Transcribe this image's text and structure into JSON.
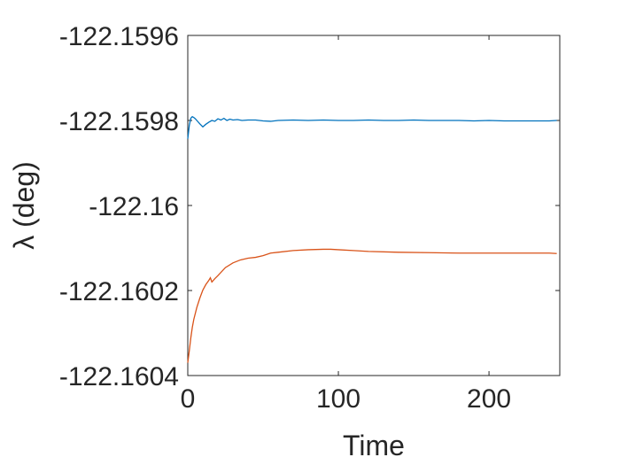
{
  "chart_data": {
    "type": "line",
    "title": "",
    "xlabel": "Time",
    "ylabel": "λ (deg)",
    "xlim": [
      0,
      247
    ],
    "ylim": [
      -122.1604,
      -122.1596
    ],
    "grid": false,
    "xticks": [
      0,
      100,
      200
    ],
    "xtick_labels": [
      "0",
      "100",
      "200"
    ],
    "yticks": [
      -122.1596,
      -122.1598,
      -122.16,
      -122.1602,
      -122.1604
    ],
    "ytick_labels": [
      "-122.1596",
      "-122.1598",
      "-122.16",
      "-122.1602",
      "-122.1604"
    ],
    "series": [
      {
        "color": "#0072BD",
        "x": [
          0,
          1,
          2,
          3,
          4,
          5,
          6,
          8,
          10,
          12,
          14,
          16,
          18,
          20,
          22,
          24,
          26,
          28,
          30,
          33,
          36,
          40,
          45,
          50,
          55,
          60,
          70,
          80,
          90,
          100,
          110,
          120,
          130,
          140,
          150,
          160,
          170,
          180,
          190,
          200,
          210,
          220,
          230,
          240,
          245
        ],
        "y": [
          -122.159843,
          -122.159812,
          -122.159795,
          -122.159791,
          -122.159793,
          -122.159796,
          -122.1598,
          -122.159808,
          -122.159815,
          -122.159809,
          -122.159804,
          -122.1598,
          -122.159802,
          -122.159796,
          -122.159799,
          -122.159795,
          -122.1598,
          -122.159797,
          -122.159799,
          -122.159798,
          -122.1598,
          -122.159799,
          -122.159799,
          -122.159801,
          -122.159802,
          -122.1598,
          -122.159799,
          -122.1598,
          -122.159799,
          -122.1598,
          -122.1598,
          -122.159799,
          -122.1598,
          -122.1598,
          -122.159799,
          -122.1598,
          -122.1598,
          -122.1598,
          -122.159801,
          -122.1598,
          -122.159801,
          -122.159801,
          -122.159801,
          -122.159801,
          -122.1598
        ]
      },
      {
        "color": "#D95319",
        "x": [
          0,
          1,
          2,
          3,
          4,
          6,
          8,
          10,
          12,
          14,
          15,
          16,
          18,
          20,
          25,
          30,
          35,
          40,
          45,
          50,
          55,
          60,
          70,
          80,
          90,
          95,
          100,
          110,
          120,
          140,
          160,
          180,
          200,
          220,
          240,
          245
        ],
        "y": [
          -122.16037,
          -122.160342,
          -122.160312,
          -122.160287,
          -122.160268,
          -122.16024,
          -122.160218,
          -122.160199,
          -122.160186,
          -122.160176,
          -122.16017,
          -122.16018,
          -122.160172,
          -122.160165,
          -122.160146,
          -122.160135,
          -122.160128,
          -122.160124,
          -122.160122,
          -122.160118,
          -122.160112,
          -122.16011,
          -122.160106,
          -122.160104,
          -122.160103,
          -122.160103,
          -122.160104,
          -122.160106,
          -122.160108,
          -122.16011,
          -122.160111,
          -122.160112,
          -122.160112,
          -122.160112,
          -122.160112,
          -122.160113
        ]
      }
    ]
  }
}
